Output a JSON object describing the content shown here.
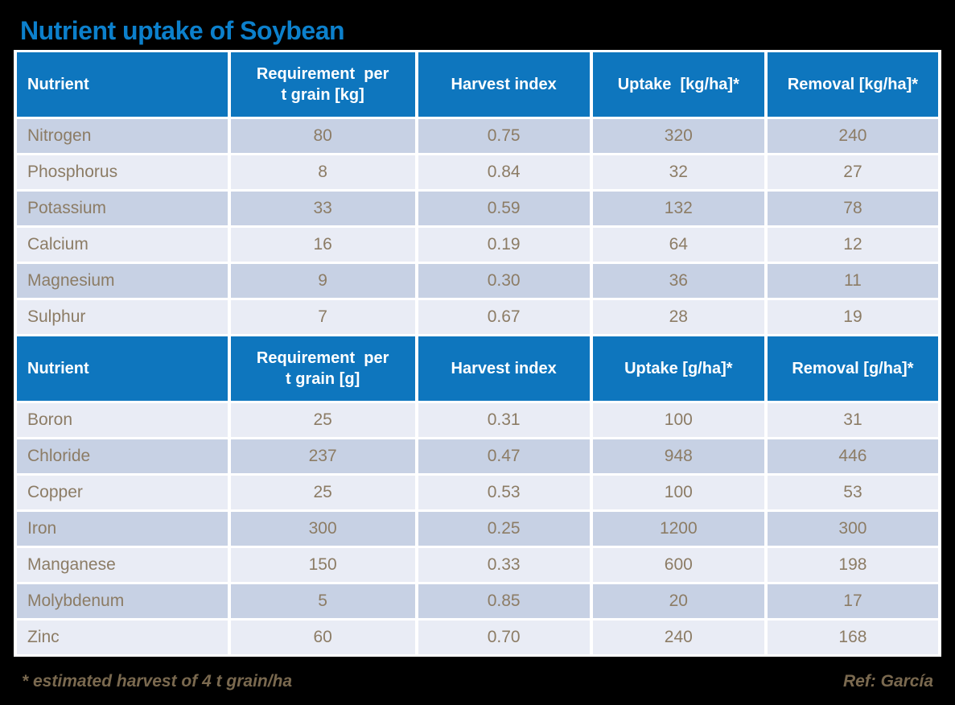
{
  "title": "Nutrient uptake of Soybean",
  "footer": {
    "footnote": "* estimated harvest of 4 t grain/ha",
    "reference": "Ref: García"
  },
  "colors": {
    "background": "#000000",
    "title_text": "#0C80CC",
    "header_bg": "#0E76BE",
    "header_text": "#FFFFFF",
    "row_dark": "#C7D1E4",
    "row_light": "#E9ECF5",
    "cell_text": "#8C7C65",
    "footer_text": "#7A694F",
    "gap": "#FFFFFF"
  },
  "table": {
    "sections": [
      {
        "first_row_shade": "dark",
        "headers": [
          "Nutrient",
          "Requirement  per\nt grain [kg]",
          "Harvest index",
          "Uptake  [kg/ha]*",
          "Removal [kg/ha]*"
        ],
        "rows": [
          [
            "Nitrogen",
            "80",
            "0.75",
            "320",
            "240"
          ],
          [
            "Phosphorus",
            "8",
            "0.84",
            "32",
            "27"
          ],
          [
            "Potassium",
            "33",
            "0.59",
            "132",
            "78"
          ],
          [
            "Calcium",
            "16",
            "0.19",
            "64",
            "12"
          ],
          [
            "Magnesium",
            "9",
            "0.30",
            "36",
            "11"
          ],
          [
            "Sulphur",
            "7",
            "0.67",
            "28",
            "19"
          ]
        ]
      },
      {
        "first_row_shade": "light",
        "headers": [
          "Nutrient",
          "Requirement  per\nt grain [g]",
          "Harvest index",
          "Uptake [g/ha]*",
          "Removal [g/ha]*"
        ],
        "rows": [
          [
            "Boron",
            "25",
            "0.31",
            "100",
            "31"
          ],
          [
            "Chloride",
            "237",
            "0.47",
            "948",
            "446"
          ],
          [
            "Copper",
            "25",
            "0.53",
            "100",
            "53"
          ],
          [
            "Iron",
            "300",
            "0.25",
            "1200",
            "300"
          ],
          [
            "Manganese",
            "150",
            "0.33",
            "600",
            "198"
          ],
          [
            "Molybdenum",
            "5",
            "0.85",
            "20",
            "17"
          ],
          [
            "Zinc",
            "60",
            "0.70",
            "240",
            "168"
          ]
        ]
      }
    ]
  },
  "chart_data": [
    {
      "type": "table",
      "title": "Nutrient uptake of Soybean",
      "columns": [
        "Nutrient",
        "Requirement per t grain [kg]",
        "Harvest index",
        "Uptake [kg/ha]*",
        "Removal [kg/ha]*"
      ],
      "rows": [
        [
          "Nitrogen",
          80,
          0.75,
          320,
          240
        ],
        [
          "Phosphorus",
          8,
          0.84,
          32,
          27
        ],
        [
          "Potassium",
          33,
          0.59,
          132,
          78
        ],
        [
          "Calcium",
          16,
          0.19,
          64,
          12
        ],
        [
          "Magnesium",
          9,
          0.3,
          36,
          11
        ],
        [
          "Sulphur",
          7,
          0.67,
          28,
          19
        ]
      ]
    },
    {
      "type": "table",
      "columns": [
        "Nutrient",
        "Requirement per t grain [g]",
        "Harvest index",
        "Uptake [g/ha]*",
        "Removal [g/ha]*"
      ],
      "rows": [
        [
          "Boron",
          25,
          0.31,
          100,
          31
        ],
        [
          "Chloride",
          237,
          0.47,
          948,
          446
        ],
        [
          "Copper",
          25,
          0.53,
          100,
          53
        ],
        [
          "Iron",
          300,
          0.25,
          1200,
          300
        ],
        [
          "Manganese",
          150,
          0.33,
          600,
          198
        ],
        [
          "Molybdenum",
          5,
          0.85,
          20,
          17
        ],
        [
          "Zinc",
          60,
          0.7,
          240,
          168
        ]
      ],
      "footnote": "* estimated harvest of 4 t grain/ha",
      "reference": "Ref: García"
    }
  ]
}
